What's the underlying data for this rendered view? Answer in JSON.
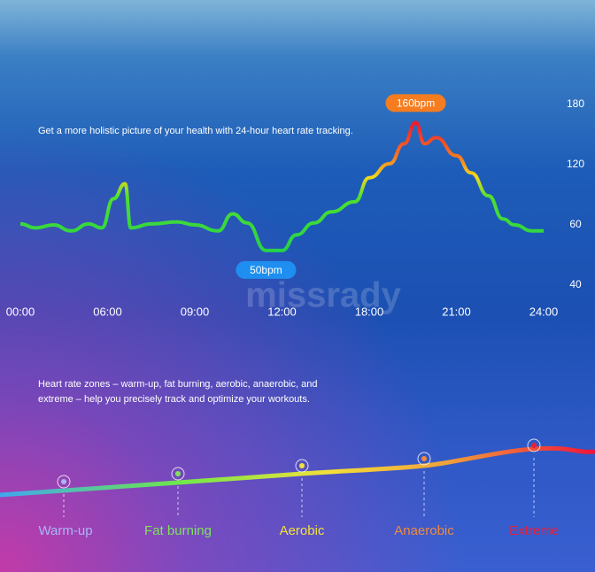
{
  "chart_data": {
    "type": "line",
    "description": "Get a more holistic picture of your health with 24-hour heart rate tracking.",
    "x": [
      0,
      1.04,
      2.27,
      3.5,
      4.7,
      5.6,
      6.2,
      6.6,
      6.8,
      7.5,
      8.4,
      9,
      9.8,
      10.3,
      10.8,
      11.45,
      12,
      13.0,
      14.2,
      15.4,
      17,
      18,
      18.7,
      19.2,
      19.6,
      19.9,
      20.3,
      21,
      21.5,
      22.1,
      22.6,
      23.0,
      23.6,
      24
    ],
    "values": [
      61,
      59,
      60,
      58,
      61,
      59,
      86,
      101,
      59,
      61,
      63,
      60,
      58,
      71,
      62,
      51.5,
      51.5,
      56.7,
      62,
      73,
      83,
      107,
      121,
      141,
      162,
      141,
      147,
      129,
      112,
      89,
      66,
      60,
      58,
      58
    ],
    "xlim": [
      0,
      24
    ],
    "xticks": [
      {
        "value": 0,
        "label": "00:00"
      },
      {
        "value": 6,
        "label": "06:00"
      },
      {
        "value": 9,
        "label": "09:00"
      },
      {
        "value": 12,
        "label": "12:00"
      },
      {
        "value": 18,
        "label": "18:00"
      },
      {
        "value": 21,
        "label": "21:00"
      },
      {
        "value": 24,
        "label": "24:00"
      }
    ],
    "ylim": [
      40,
      180
    ],
    "yticks": [
      180,
      120,
      60,
      40
    ],
    "max_label": "160bpm",
    "min_label": "50bpm",
    "watermark": "missrady"
  },
  "zones": {
    "description": "Heart rate zones – warm-up, fat burning, aerobic, anaerobic, and extreme – help you precisely track and optimize your workouts.",
    "labels": [
      {
        "text": "Warm-up",
        "color": "#a9b6f5"
      },
      {
        "text": "Fat burning",
        "color": "#7fe35a"
      },
      {
        "text": "Aerobic",
        "color": "#f3e03a"
      },
      {
        "text": "Anaerobic",
        "color": "#f08a3c"
      },
      {
        "text": "Extreme",
        "color": "#e8203a"
      }
    ]
  }
}
